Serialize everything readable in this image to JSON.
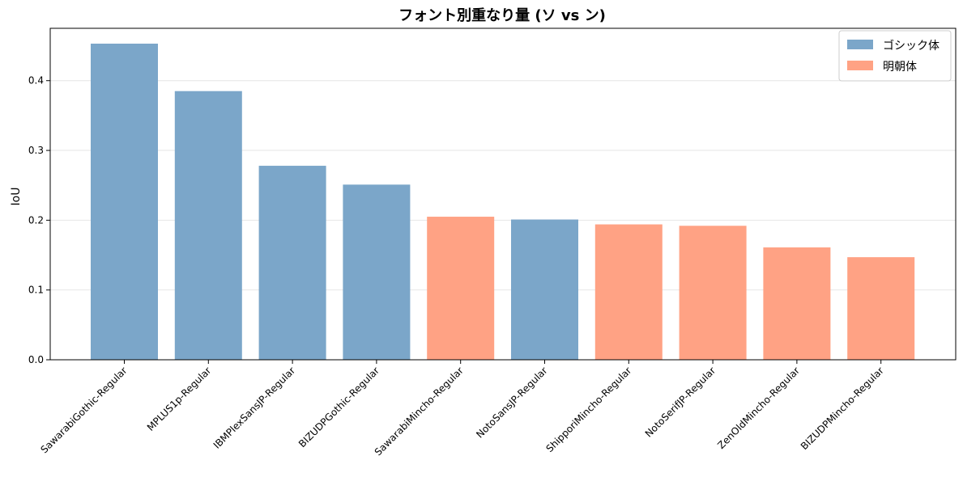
{
  "chart_data": {
    "type": "bar",
    "title": "フォント別重なり量 (ソ vs ン)",
    "xlabel": "",
    "ylabel": "IoU",
    "ylim": [
      0,
      0.475
    ],
    "yticks": [
      "0.0",
      "0.1",
      "0.2",
      "0.3",
      "0.4"
    ],
    "grid": "horizontal",
    "legend_position": "top-right",
    "colors": {
      "ゴシック体": "#7ba6c9",
      "明朝体": "#ffa284"
    },
    "legend": [
      {
        "label": "ゴシック体",
        "color": "#7ba6c9"
      },
      {
        "label": "明朝体",
        "color": "#ffa284"
      }
    ],
    "categories": [
      "SawarabiGothic-Regular",
      "MPLUS1p-Regular",
      "IBMPlexSansJP-Regular",
      "BIZUDPGothic-Regular",
      "SawarabiMincho-Regular",
      "NotoSansJP-Regular",
      "ShipporiMincho-Regular",
      "NotoSerifJP-Regular",
      "ZenOldMincho-Regular",
      "BIZUDPMincho-Regular"
    ],
    "values": [
      0.453,
      0.385,
      0.278,
      0.251,
      0.205,
      0.201,
      0.194,
      0.192,
      0.161,
      0.147
    ],
    "groups": [
      "ゴシック体",
      "ゴシック体",
      "ゴシック体",
      "ゴシック体",
      "明朝体",
      "ゴシック体",
      "明朝体",
      "明朝体",
      "明朝体",
      "明朝体"
    ]
  }
}
